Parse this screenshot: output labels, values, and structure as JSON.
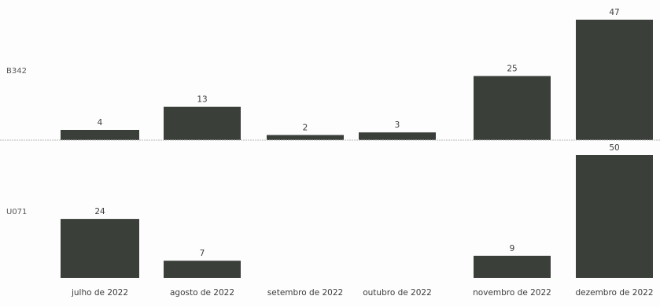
{
  "chart_data": {
    "type": "bar",
    "categories": [
      "julho de 2022",
      "agosto de 2022",
      "setembro de 2022",
      "outubro de 2022",
      "novembro de 2022",
      "dezembro de 2022"
    ],
    "series": [
      {
        "name": "B342",
        "values": [
          4,
          13,
          2,
          3,
          25,
          47
        ]
      },
      {
        "name": "U071",
        "values": [
          24,
          7,
          null,
          null,
          9,
          50
        ]
      }
    ],
    "title": "",
    "xlabel": "",
    "ylabel": "",
    "layout": "small-multiples-rows",
    "grid": false,
    "legend": "none",
    "bar_color": "#3a3f3a",
    "separator_color": "#bbbbbb"
  }
}
